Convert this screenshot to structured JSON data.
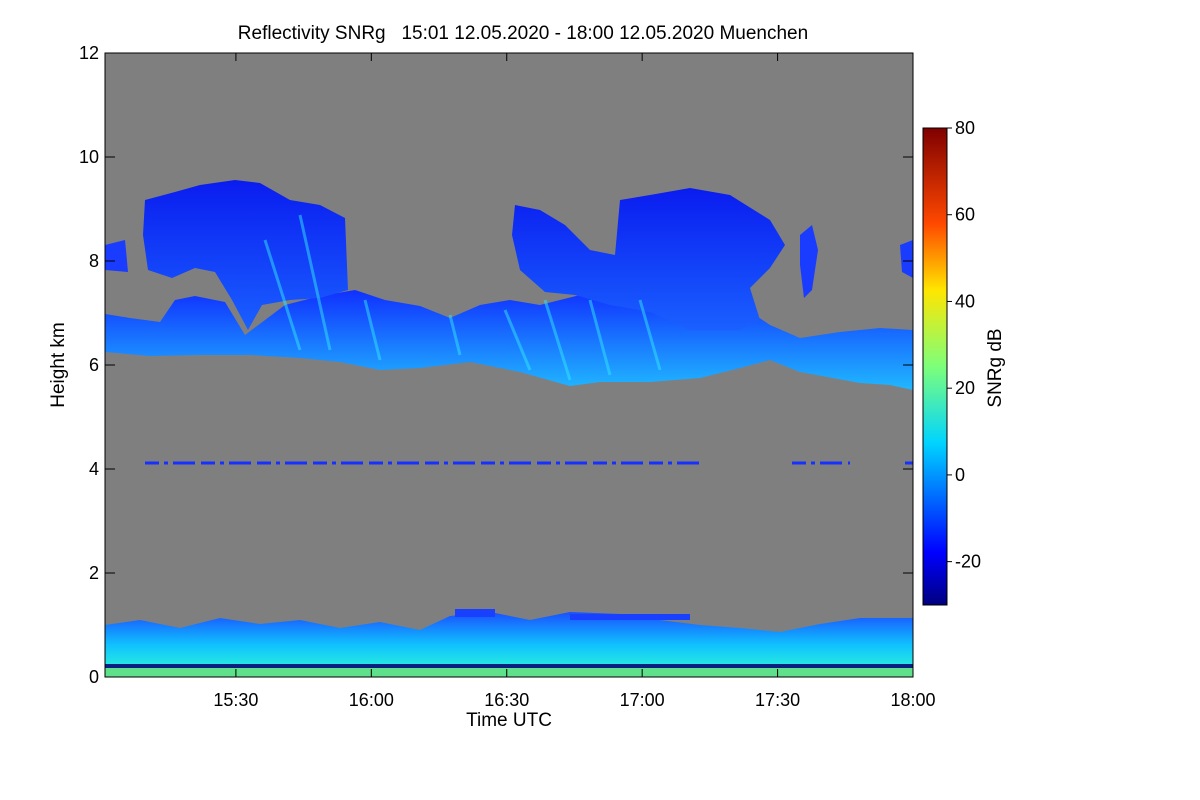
{
  "chart_data": {
    "type": "heatmap",
    "title": "Reflectivity SNRg   15:01 12.05.2020 - 18:00 12.05.2020 Muenchen",
    "xlabel": "Time UTC",
    "ylabel": "Height km",
    "xlim": [
      "15:01",
      "18:00"
    ],
    "ylim": [
      0,
      12
    ],
    "x_ticks": [
      "15:30",
      "16:00",
      "16:30",
      "17:00",
      "17:30",
      "18:00"
    ],
    "y_ticks": [
      0,
      2,
      4,
      6,
      8,
      10,
      12
    ],
    "background_color": "#7f7f7f",
    "colorbar": {
      "label": "SNRg dB",
      "range": [
        -30,
        80
      ],
      "ticks": [
        -20,
        0,
        20,
        40,
        60,
        80
      ],
      "colormap": "jet"
    },
    "features": [
      {
        "kind": "cloud_layer",
        "time_range": [
          "15:01",
          "18:00"
        ],
        "height_km": [
          5.7,
          7.0
        ],
        "snr_db_approx": [
          -15,
          5
        ]
      },
      {
        "kind": "cloud_tops",
        "time_range": [
          "15:08",
          "17:46"
        ],
        "height_km": [
          7.0,
          9.5
        ],
        "snr_db_approx": [
          -25,
          0
        ]
      },
      {
        "kind": "line",
        "height_km": 4.15,
        "snr_db_approx": -22
      },
      {
        "kind": "boundary_layer_clutter",
        "time_range": [
          "15:01",
          "18:00"
        ],
        "height_km": [
          0,
          1.2
        ],
        "snr_db_approx": [
          -20,
          20
        ]
      }
    ]
  }
}
